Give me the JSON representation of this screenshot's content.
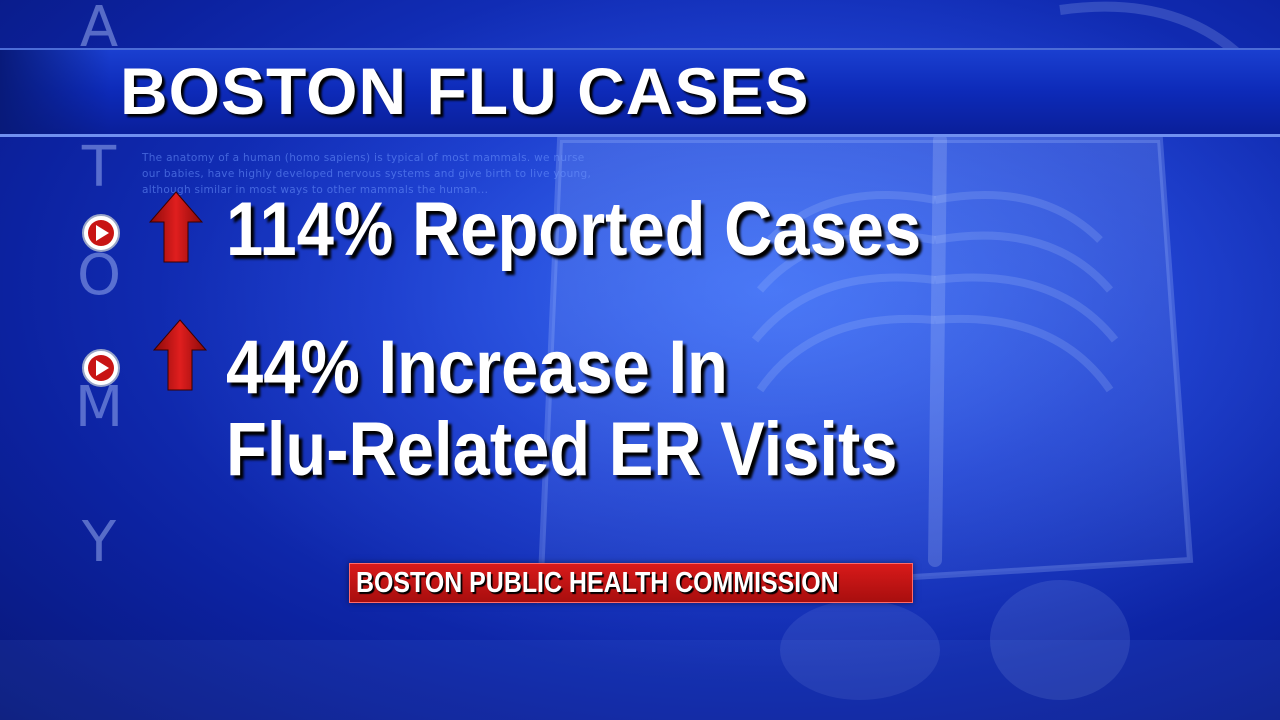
{
  "side_letters": [
    "A",
    "T",
    "O",
    "M",
    "Y"
  ],
  "anatomy_text": "The anatomy of a human (homo sapiens) is typical of most mammals. we nurse our babies, have highly developed nervous systems and give birth to live young, although similar in most ways to other mammals the human...",
  "title": "BOSTON FLU CASES",
  "bullets": [
    {
      "icon": "play-icon",
      "trend_icon": "up-arrow-icon",
      "text_lines": [
        "114% Reported Cases"
      ]
    },
    {
      "icon": "play-icon",
      "trend_icon": "up-arrow-icon",
      "text_lines": [
        "44% Increase In",
        "Flu-Related ER Visits"
      ]
    }
  ],
  "source": "BOSTON PUBLIC HEALTH COMMISSION",
  "colors": {
    "background": "#1637c9",
    "title_bar": "#0d2ab8",
    "arrow": "#d41414",
    "source_box": "#c41414",
    "text": "#ffffff"
  }
}
